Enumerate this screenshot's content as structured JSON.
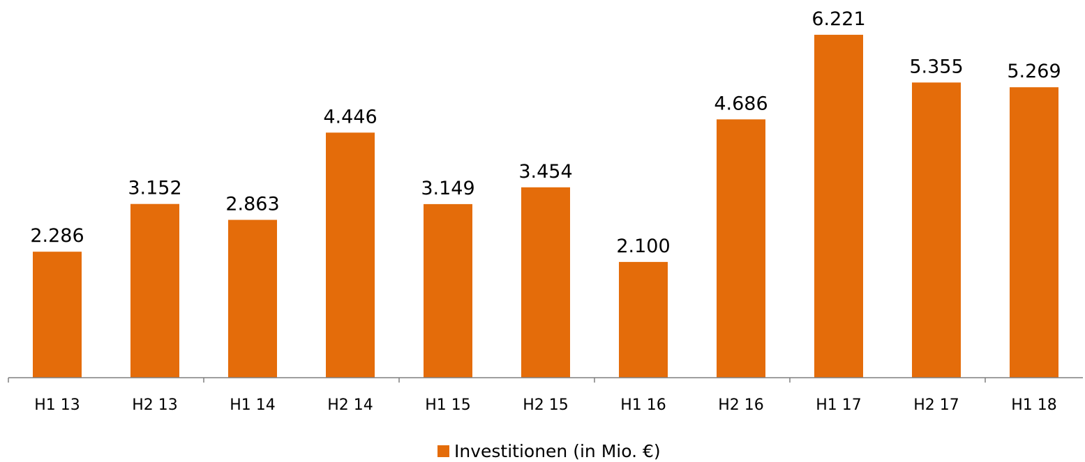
{
  "chart_data": {
    "type": "bar",
    "categories": [
      "H1 13",
      "H2 13",
      "H1 14",
      "H2 14",
      "H1 15",
      "H2 15",
      "H1 16",
      "H2 16",
      "H1 17",
      "H2 17",
      "H1 18"
    ],
    "value_labels": [
      "2.286",
      "3.152",
      "2.863",
      "4.446",
      "3.149",
      "3.454",
      "2.100",
      "4.686",
      "6.221",
      "5.355",
      "5.269"
    ],
    "series": [
      {
        "name": "Investitionen (in Mio. €)",
        "values": [
          2286,
          3152,
          2863,
          4446,
          3149,
          3454,
          2100,
          4686,
          6221,
          5355,
          5269
        ],
        "color": "#E46C0A"
      }
    ],
    "title": "",
    "xlabel": "",
    "ylabel": "",
    "ylim": [
      0,
      6600
    ],
    "grid": false,
    "y_axis_visible": false,
    "legend": "bottom-center"
  }
}
